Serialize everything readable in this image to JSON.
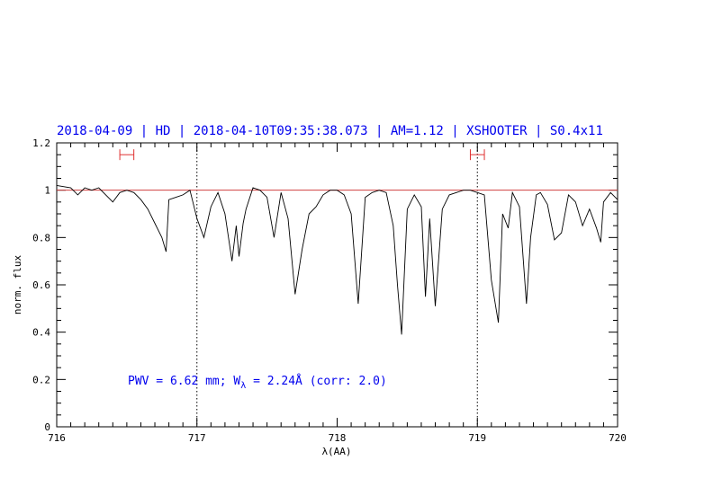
{
  "chart_data": {
    "type": "line",
    "title": "2018-04-09 | HD | 2018-04-10T09:35:38.073 | AM=1.12 | XSHOOTER | S0.4x11",
    "xlabel": "λ(AA)",
    "ylabel": "norm. flux",
    "xlim": [
      716,
      720
    ],
    "ylim": [
      0,
      1.2
    ],
    "x_ticks": [
      "716",
      "717",
      "718",
      "719",
      "720"
    ],
    "y_ticks": [
      "0",
      "0.2",
      "0.4",
      "0.6",
      "0.8",
      "1",
      "1.2"
    ],
    "x_tick_values": [
      716,
      717,
      718,
      719,
      720
    ],
    "y_tick_values": [
      0,
      0.2,
      0.4,
      0.6,
      0.8,
      1.0,
      1.2
    ],
    "continuum_level": 1.0,
    "vertical_markers": [
      717,
      719
    ],
    "continuum_windows": [
      {
        "x0": 716.45,
        "x1": 716.55,
        "y": 1.15
      },
      {
        "x0": 718.95,
        "x1": 719.05,
        "y": 1.15
      }
    ],
    "annotation": {
      "prefix": "PWV = 6.62 mm; W",
      "subscript": "λ",
      "suffix": " = 2.24Å (corr: 2.0)"
    },
    "colors": {
      "title": "#0000ee",
      "spectrum": "#000000",
      "continuum": "#d04040",
      "windows": "#e03030",
      "annotation": "#0000ee"
    },
    "series": [
      {
        "x": [
          716.0,
          716.1,
          716.15,
          716.2,
          716.25,
          716.3,
          716.35,
          716.4,
          716.45,
          716.5,
          716.55,
          716.6,
          716.65,
          716.7,
          716.75,
          716.78,
          716.8,
          716.85,
          716.9,
          716.95,
          717.0,
          717.05,
          717.1,
          717.15,
          717.2,
          717.25,
          717.28,
          717.3,
          717.33,
          717.35,
          717.4,
          717.45,
          717.5,
          717.55,
          717.6,
          717.65,
          717.7,
          717.75,
          717.8,
          717.85,
          717.9,
          717.95,
          718.0,
          718.05,
          718.1,
          718.15,
          718.2,
          718.25,
          718.3,
          718.35,
          718.4,
          718.43,
          718.46,
          718.5,
          718.55,
          718.6,
          718.63,
          718.66,
          718.7,
          718.75,
          718.8,
          718.85,
          718.9,
          718.95,
          719.0,
          719.05,
          719.1,
          719.15,
          719.18,
          719.22,
          719.25,
          719.3,
          719.35,
          719.38,
          719.42,
          719.45,
          719.5,
          719.55,
          719.6,
          719.65,
          719.7,
          719.75,
          719.8,
          719.85,
          719.88,
          719.9,
          719.95,
          720.0
        ],
        "y": [
          1.02,
          1.01,
          0.98,
          1.01,
          1.0,
          1.01,
          0.98,
          0.95,
          0.99,
          1.0,
          0.99,
          0.96,
          0.92,
          0.86,
          0.8,
          0.74,
          0.96,
          0.97,
          0.98,
          1.0,
          0.88,
          0.8,
          0.93,
          0.99,
          0.9,
          0.7,
          0.85,
          0.72,
          0.86,
          0.92,
          1.01,
          1.0,
          0.97,
          0.8,
          0.99,
          0.88,
          0.56,
          0.75,
          0.9,
          0.93,
          0.98,
          1.0,
          1.0,
          0.98,
          0.9,
          0.52,
          0.97,
          0.99,
          1.0,
          0.99,
          0.85,
          0.6,
          0.39,
          0.92,
          0.98,
          0.93,
          0.55,
          0.88,
          0.51,
          0.92,
          0.98,
          0.99,
          1.0,
          1.0,
          0.99,
          0.98,
          0.62,
          0.44,
          0.9,
          0.84,
          0.99,
          0.93,
          0.52,
          0.8,
          0.98,
          0.99,
          0.94,
          0.79,
          0.82,
          0.98,
          0.95,
          0.85,
          0.92,
          0.84,
          0.78,
          0.95,
          0.99,
          0.96
        ]
      }
    ]
  }
}
